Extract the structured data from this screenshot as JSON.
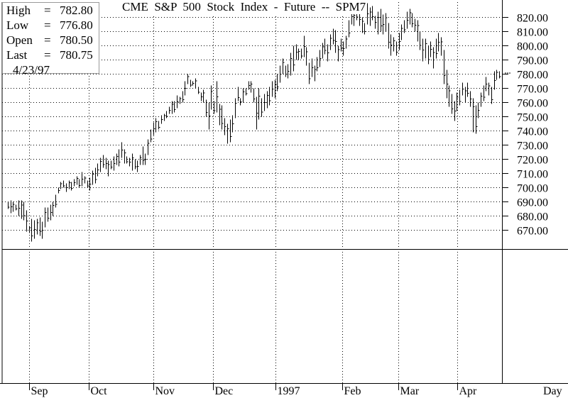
{
  "ohlc_box": {
    "high_label": "High",
    "high_value": "782.80",
    "low_label": "Low",
    "low_value": "776.80",
    "open_label": "Open",
    "open_value": "780.50",
    "last_label": "Last",
    "last_value": "780.75",
    "date": "4/23/97"
  },
  "chart_data": {
    "type": "ohlc",
    "title": "CME  S&P  500  Stock  Index  -  Future  --  SPM7",
    "xlabel": "Day",
    "x_ticks": [
      "Sep",
      "Oct",
      "Nov",
      "Dec",
      "1997",
      "Feb",
      "Mar",
      "Apr"
    ],
    "y_ticks": [
      "670.00",
      "680.00",
      "690.00",
      "700.00",
      "710.00",
      "720.00",
      "730.00",
      "740.00",
      "750.00",
      "760.00",
      "770.00",
      "780.00",
      "790.00",
      "800.00",
      "810.00",
      "820.00"
    ],
    "ylim": [
      660,
      831
    ],
    "grid": true,
    "bars": [
      [
        685,
        690
      ],
      [
        682,
        691
      ],
      [
        683,
        690
      ],
      [
        684,
        688
      ],
      [
        680,
        691
      ],
      [
        678,
        691
      ],
      [
        677,
        690
      ],
      [
        669,
        684
      ],
      [
        668,
        673
      ],
      [
        662,
        678
      ],
      [
        664,
        677
      ],
      [
        667,
        678
      ],
      [
        666,
        679
      ],
      [
        664,
        676
      ],
      [
        672,
        686
      ],
      [
        676,
        686
      ],
      [
        677,
        688
      ],
      [
        680,
        690
      ],
      [
        686,
        695
      ],
      [
        696,
        700
      ],
      [
        699,
        704
      ],
      [
        700,
        705
      ],
      [
        697,
        703
      ],
      [
        699,
        705
      ],
      [
        698,
        704
      ],
      [
        701,
        706
      ],
      [
        702,
        708
      ],
      [
        700,
        706
      ],
      [
        701,
        711
      ],
      [
        703,
        708
      ],
      [
        700,
        705
      ],
      [
        698,
        707
      ],
      [
        702,
        712
      ],
      [
        703,
        714
      ],
      [
        708,
        717
      ],
      [
        711,
        721
      ],
      [
        714,
        723
      ],
      [
        713,
        721
      ],
      [
        708,
        719
      ],
      [
        713,
        719
      ],
      [
        712,
        722
      ],
      [
        716,
        724
      ],
      [
        715,
        727
      ],
      [
        721,
        732
      ],
      [
        717,
        727
      ],
      [
        717,
        722
      ],
      [
        715,
        721
      ],
      [
        712,
        724
      ],
      [
        713,
        720
      ],
      [
        711,
        719
      ],
      [
        716,
        723
      ],
      [
        716,
        729
      ],
      [
        716,
        724
      ],
      [
        723,
        734
      ],
      [
        732,
        741
      ],
      [
        737,
        746
      ],
      [
        739,
        749
      ],
      [
        741,
        747
      ],
      [
        745,
        751
      ],
      [
        747,
        752
      ],
      [
        749,
        754
      ],
      [
        752,
        757
      ],
      [
        752,
        761
      ],
      [
        753,
        761
      ],
      [
        756,
        765
      ],
      [
        759,
        764
      ],
      [
        760,
        768
      ],
      [
        765,
        775
      ],
      [
        773,
        780
      ],
      [
        771,
        776
      ],
      [
        772,
        775
      ],
      [
        770,
        777
      ],
      [
        766,
        771
      ],
      [
        761,
        767
      ],
      [
        760,
        769
      ],
      [
        750,
        762
      ],
      [
        741,
        760
      ],
      [
        755,
        772
      ],
      [
        752,
        761
      ],
      [
        753,
        775
      ],
      [
        744,
        759
      ],
      [
        741,
        758
      ],
      [
        737,
        749
      ],
      [
        731,
        745
      ],
      [
        732,
        748
      ],
      [
        739,
        751
      ],
      [
        749,
        763
      ],
      [
        761,
        771
      ],
      [
        758,
        763
      ],
      [
        760,
        770
      ],
      [
        765,
        770
      ],
      [
        769,
        775
      ],
      [
        767,
        775
      ],
      [
        760,
        770
      ],
      [
        741,
        764
      ],
      [
        748,
        770
      ],
      [
        750,
        763
      ],
      [
        754,
        766
      ],
      [
        756,
        768
      ],
      [
        758,
        771
      ],
      [
        764,
        775
      ],
      [
        763,
        776
      ],
      [
        768,
        780
      ],
      [
        774,
        786
      ],
      [
        780,
        791
      ],
      [
        778,
        786
      ],
      [
        777,
        787
      ],
      [
        779,
        795
      ],
      [
        782,
        800
      ],
      [
        790,
        801
      ],
      [
        790,
        798
      ],
      [
        791,
        798
      ],
      [
        792,
        807
      ],
      [
        786,
        799
      ],
      [
        773,
        788
      ],
      [
        778,
        791
      ],
      [
        775,
        786
      ],
      [
        782,
        792
      ],
      [
        785,
        797
      ],
      [
        791,
        802
      ],
      [
        794,
        805
      ],
      [
        789,
        801
      ],
      [
        797,
        808
      ],
      [
        801,
        812
      ],
      [
        795,
        811
      ],
      [
        789,
        800
      ],
      [
        796,
        805
      ],
      [
        793,
        803
      ],
      [
        798,
        807
      ],
      [
        806,
        818
      ],
      [
        815,
        826
      ],
      [
        814,
        824
      ],
      [
        818,
        827
      ],
      [
        814,
        823
      ],
      [
        809,
        820
      ],
      [
        808,
        816
      ],
      [
        815,
        830
      ],
      [
        814,
        827
      ],
      [
        818,
        828
      ],
      [
        812,
        821
      ],
      [
        808,
        824
      ],
      [
        810,
        826
      ],
      [
        808,
        822
      ],
      [
        810,
        823
      ],
      [
        798,
        816
      ],
      [
        793,
        808
      ],
      [
        796,
        806
      ],
      [
        793,
        803
      ],
      [
        797,
        809
      ],
      [
        804,
        815
      ],
      [
        809,
        818
      ],
      [
        812,
        824
      ],
      [
        815,
        826
      ],
      [
        813,
        823
      ],
      [
        810,
        819
      ],
      [
        803,
        818
      ],
      [
        797,
        810
      ],
      [
        789,
        805
      ],
      [
        791,
        805
      ],
      [
        787,
        800
      ],
      [
        792,
        803
      ],
      [
        784,
        799
      ],
      [
        791,
        805
      ],
      [
        796,
        809
      ],
      [
        793,
        806
      ],
      [
        773,
        797
      ],
      [
        763,
        783
      ],
      [
        757,
        772
      ],
      [
        752,
        766
      ],
      [
        747,
        761
      ],
      [
        754,
        767
      ],
      [
        758,
        769
      ],
      [
        765,
        774
      ],
      [
        760,
        771
      ],
      [
        764,
        774
      ],
      [
        757,
        768
      ],
      [
        739,
        763
      ],
      [
        738,
        758
      ],
      [
        749,
        760
      ],
      [
        757,
        767
      ],
      [
        761,
        772
      ],
      [
        768,
        778
      ],
      [
        765,
        774
      ],
      [
        759,
        771
      ],
      [
        769,
        782
      ],
      [
        776,
        783
      ],
      [
        777,
        782
      ]
    ]
  }
}
